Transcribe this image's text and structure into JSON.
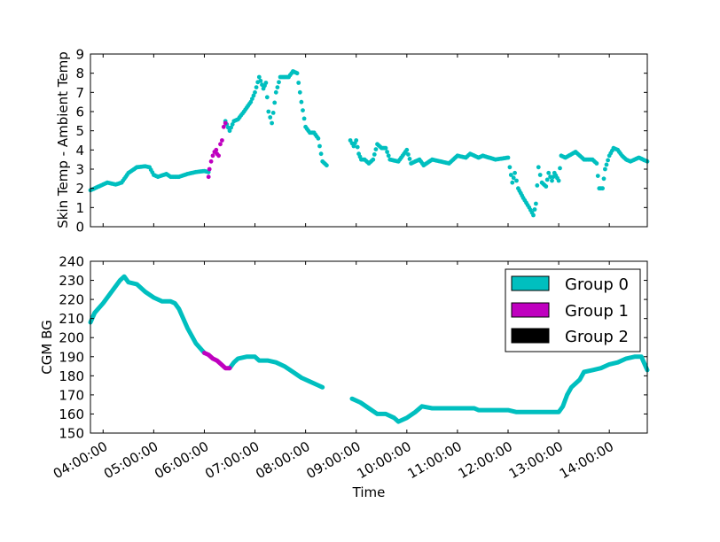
{
  "chart_data": [
    {
      "type": "scatter",
      "xlabel": "",
      "ylabel": "Skin Temp - Ambient Temp",
      "xlim": [
        "03:45:00",
        "14:45:00"
      ],
      "ylim": [
        0,
        9
      ],
      "yticks": [
        "0",
        "1",
        "2",
        "3",
        "4",
        "5",
        "6",
        "7",
        "8",
        "9"
      ],
      "grid": false,
      "series": [
        {
          "name": "Group 0",
          "color": "#00bfbf",
          "segments": [
            [
              [
                "03:45",
                1.9
              ],
              [
                "03:55",
                2.1
              ],
              [
                "04:05",
                2.3
              ],
              [
                "04:15",
                2.2
              ],
              [
                "04:22",
                2.3
              ],
              [
                "04:30",
                2.8
              ],
              [
                "04:40",
                3.1
              ],
              [
                "04:50",
                3.15
              ],
              [
                "04:55",
                3.1
              ],
              [
                "05:00",
                2.7
              ],
              [
                "05:05",
                2.6
              ],
              [
                "05:15",
                2.75
              ],
              [
                "05:20",
                2.6
              ],
              [
                "05:30",
                2.6
              ],
              [
                "05:40",
                2.75
              ],
              [
                "05:50",
                2.85
              ],
              [
                "06:00",
                2.9
              ],
              [
                "06:05",
                2.85
              ]
            ],
            [
              [
                "06:25",
                5.5
              ],
              [
                "06:30",
                5.0
              ],
              [
                "06:35",
                5.5
              ],
              [
                "06:40",
                5.6
              ],
              [
                "06:47",
                6.0
              ],
              [
                "06:55",
                6.5
              ],
              [
                "07:00",
                7.0
              ],
              [
                "07:05",
                7.8
              ],
              [
                "07:10",
                7.2
              ],
              [
                "07:13",
                7.5
              ],
              [
                "07:16",
                6.0
              ],
              [
                "07:20",
                5.4
              ],
              [
                "07:25",
                7.0
              ],
              [
                "07:30",
                7.8
              ],
              [
                "07:40",
                7.8
              ],
              [
                "07:45",
                8.1
              ],
              [
                "07:50",
                8.0
              ],
              [
                "07:55",
                6.5
              ],
              [
                "08:00",
                5.2
              ],
              [
                "08:05",
                4.9
              ],
              [
                "08:10",
                4.9
              ],
              [
                "08:15",
                4.6
              ],
              [
                "08:20",
                3.4
              ],
              [
                "08:25",
                3.2
              ]
            ],
            [
              [
                "08:53",
                4.5
              ],
              [
                "08:57",
                4.2
              ],
              [
                "09:00",
                4.5
              ],
              [
                "09:03",
                3.8
              ],
              [
                "09:06",
                3.5
              ],
              [
                "09:10",
                3.5
              ],
              [
                "09:15",
                3.3
              ],
              [
                "09:20",
                3.5
              ],
              [
                "09:25",
                4.3
              ],
              [
                "09:30",
                4.1
              ],
              [
                "09:35",
                4.1
              ],
              [
                "09:40",
                3.5
              ],
              [
                "09:50",
                3.4
              ],
              [
                "10:00",
                4.0
              ],
              [
                "10:05",
                3.3
              ],
              [
                "10:15",
                3.5
              ],
              [
                "10:20",
                3.2
              ],
              [
                "10:30",
                3.5
              ],
              [
                "10:40",
                3.4
              ],
              [
                "10:50",
                3.3
              ],
              [
                "11:00",
                3.7
              ],
              [
                "11:10",
                3.6
              ],
              [
                "11:15",
                3.8
              ],
              [
                "11:25",
                3.6
              ],
              [
                "11:30",
                3.7
              ],
              [
                "11:45",
                3.5
              ],
              [
                "12:00",
                3.6
              ],
              [
                "12:02",
                3.1
              ],
              [
                "12:05",
                2.3
              ],
              [
                "12:08",
                2.8
              ],
              [
                "12:12",
                2.0
              ],
              [
                "12:18",
                1.5
              ],
              [
                "12:25",
                1.0
              ],
              [
                "12:30",
                0.6
              ],
              [
                "12:33",
                1.2
              ],
              [
                "12:36",
                3.1
              ],
              [
                "12:40",
                2.3
              ],
              [
                "12:45",
                2.1
              ],
              [
                "12:48",
                2.8
              ],
              [
                "12:52",
                2.4
              ],
              [
                "12:55",
                2.8
              ],
              [
                "13:00",
                2.4
              ],
              [
                "13:03",
                3.7
              ],
              [
                "13:08",
                3.6
              ],
              [
                "13:12",
                3.7
              ],
              [
                "13:20",
                3.9
              ],
              [
                "13:25",
                3.7
              ],
              [
                "13:30",
                3.5
              ],
              [
                "13:40",
                3.5
              ],
              [
                "13:45",
                3.3
              ],
              [
                "13:48",
                2.0
              ],
              [
                "13:52",
                2.0
              ],
              [
                "13:55",
                3.0
              ],
              [
                "14:00",
                3.7
              ],
              [
                "14:05",
                4.1
              ],
              [
                "14:10",
                4.0
              ],
              [
                "14:15",
                3.7
              ],
              [
                "14:20",
                3.5
              ],
              [
                "14:25",
                3.4
              ],
              [
                "14:30",
                3.5
              ],
              [
                "14:35",
                3.6
              ],
              [
                "14:40",
                3.5
              ],
              [
                "14:45",
                3.4
              ]
            ]
          ]
        },
        {
          "name": "Group 1",
          "color": "#bf00bf",
          "segments": [
            [
              [
                "06:05",
                2.6
              ],
              [
                "06:06",
                3.0
              ],
              [
                "06:08",
                3.4
              ],
              [
                "06:10",
                3.7
              ],
              [
                "06:12",
                3.9
              ],
              [
                "06:14",
                4.0
              ],
              [
                "06:15",
                3.8
              ],
              [
                "06:17",
                3.7
              ],
              [
                "06:19",
                4.3
              ],
              [
                "06:21",
                4.5
              ],
              [
                "06:23",
                5.2
              ],
              [
                "06:25",
                5.4
              ]
            ]
          ]
        }
      ]
    },
    {
      "type": "line",
      "xlabel": "Time",
      "ylabel": "CGM BG",
      "xlim": [
        "03:45:00",
        "14:45:00"
      ],
      "ylim": [
        150,
        240
      ],
      "yticks": [
        "150",
        "160",
        "170",
        "180",
        "190",
        "200",
        "210",
        "220",
        "230",
        "240"
      ],
      "xticks": [
        "04:00:00",
        "05:00:00",
        "06:00:00",
        "07:00:00",
        "08:00:00",
        "09:00:00",
        "10:00:00",
        "11:00:00",
        "12:00:00",
        "13:00:00",
        "14:00:00"
      ],
      "grid": false,
      "legend_position": "top-right",
      "series": [
        {
          "name": "Group 0",
          "color": "#00bfbf",
          "segments": [
            [
              [
                "03:45",
                208
              ],
              [
                "03:50",
                213
              ],
              [
                "04:00",
                218
              ],
              [
                "04:10",
                224
              ],
              [
                "04:20",
                230
              ],
              [
                "04:25",
                232
              ],
              [
                "04:30",
                229
              ],
              [
                "04:40",
                228
              ],
              [
                "04:50",
                224
              ],
              [
                "05:00",
                221
              ],
              [
                "05:10",
                219
              ],
              [
                "05:20",
                219
              ],
              [
                "05:25",
                218
              ],
              [
                "05:30",
                215
              ],
              [
                "05:40",
                205
              ],
              [
                "05:50",
                197
              ],
              [
                "06:00",
                192
              ]
            ],
            [
              [
                "06:30",
                184
              ],
              [
                "06:35",
                187
              ],
              [
                "06:40",
                189
              ],
              [
                "06:50",
                190
              ],
              [
                "07:00",
                190
              ],
              [
                "07:05",
                188
              ],
              [
                "07:15",
                188
              ],
              [
                "07:25",
                187
              ],
              [
                "07:35",
                185
              ],
              [
                "07:45",
                182
              ],
              [
                "07:55",
                179
              ],
              [
                "08:05",
                177
              ],
              [
                "08:15",
                175
              ],
              [
                "08:20",
                174
              ]
            ],
            [
              [
                "08:55",
                168
              ],
              [
                "09:05",
                166
              ],
              [
                "09:15",
                163
              ],
              [
                "09:25",
                160
              ],
              [
                "09:35",
                160
              ],
              [
                "09:45",
                158
              ],
              [
                "09:50",
                156
              ],
              [
                "10:00",
                158
              ],
              [
                "10:10",
                161
              ],
              [
                "10:18",
                164
              ],
              [
                "10:30",
                163
              ],
              [
                "11:00",
                163
              ],
              [
                "11:20",
                163
              ],
              [
                "11:25",
                162
              ],
              [
                "12:00",
                162
              ],
              [
                "12:10",
                161
              ],
              [
                "12:30",
                161
              ],
              [
                "13:00",
                161
              ],
              [
                "13:05",
                164
              ],
              [
                "13:10",
                170
              ],
              [
                "13:15",
                174
              ],
              [
                "13:20",
                176
              ],
              [
                "13:25",
                178
              ],
              [
                "13:30",
                182
              ],
              [
                "13:40",
                183
              ],
              [
                "13:50",
                184
              ],
              [
                "14:00",
                186
              ],
              [
                "14:10",
                187
              ],
              [
                "14:20",
                189
              ],
              [
                "14:30",
                190
              ],
              [
                "14:38",
                190
              ],
              [
                "14:42",
                186
              ],
              [
                "14:45",
                183
              ]
            ]
          ]
        },
        {
          "name": "Group 1",
          "color": "#bf00bf",
          "segments": [
            [
              [
                "06:00",
                192
              ],
              [
                "06:05",
                191
              ],
              [
                "06:10",
                189
              ],
              [
                "06:15",
                188
              ],
              [
                "06:20",
                186
              ],
              [
                "06:25",
                184
              ],
              [
                "06:30",
                184
              ]
            ]
          ]
        },
        {
          "name": "Group 2",
          "color": "#000000",
          "segments": []
        }
      ]
    }
  ]
}
